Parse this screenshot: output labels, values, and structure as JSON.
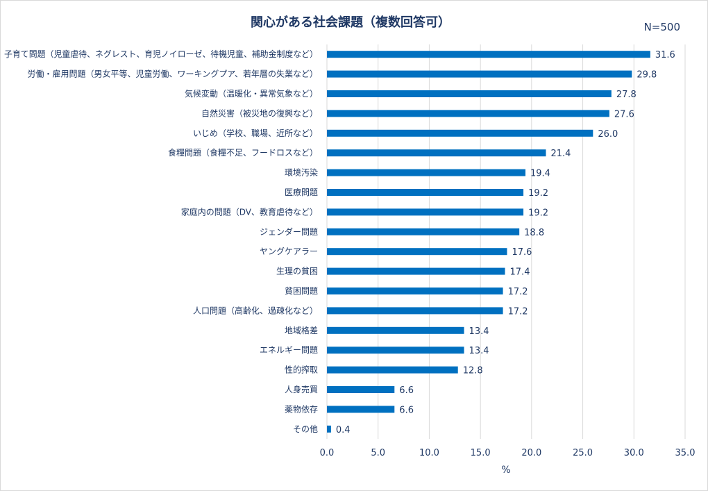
{
  "chart_data": {
    "type": "bar",
    "orientation": "horizontal",
    "title": "関心がある社会課題（複数回答可）",
    "note": "N=500",
    "xlabel": "%",
    "ylabel": "",
    "xlim": [
      0,
      35
    ],
    "ticks": [
      "0.0",
      "5.0",
      "10.0",
      "15.0",
      "20.0",
      "25.0",
      "30.0",
      "35.0"
    ],
    "tick_values": [
      0,
      5,
      10,
      15,
      20,
      25,
      30,
      35
    ],
    "grid": true,
    "color": "#0070c0",
    "categories": [
      "子育て問題（児童虐待、ネグレスト、育児ノイローゼ、待機児童、補助金制度など）",
      "労働・雇用問題（男女平等、児童労働、ワーキングプア、若年層の失業など）",
      "気候変動（温暖化・異常気象など）",
      "自然災害（被災地の復興など）",
      "いじめ（学校、職場、近所など）",
      "食糧問題（食糧不足、フードロスなど）",
      "環境汚染",
      "医療問題",
      "家庭内の問題（DV、教育虐待など）",
      "ジェンダー問題",
      "ヤングケアラー",
      "生理の貧困",
      "貧困問題",
      "人口問題（高齢化、過疎化など）",
      "地域格差",
      "エネルギー問題",
      "性的搾取",
      "人身売買",
      "薬物依存",
      "その他"
    ],
    "values": [
      31.6,
      29.8,
      27.8,
      27.6,
      26.0,
      21.4,
      19.4,
      19.2,
      19.2,
      18.8,
      17.6,
      17.4,
      17.2,
      17.2,
      13.4,
      13.4,
      12.8,
      6.6,
      6.6,
      0.4
    ],
    "value_labels": [
      "31.6",
      "29.8",
      "27.8",
      "27.6",
      "26.0",
      "21.4",
      "19.4",
      "19.2",
      "19.2",
      "18.8",
      "17.6",
      "17.4",
      "17.2",
      "17.2",
      "13.4",
      "13.4",
      "12.8",
      "6.6",
      "6.6",
      "0.4"
    ]
  }
}
